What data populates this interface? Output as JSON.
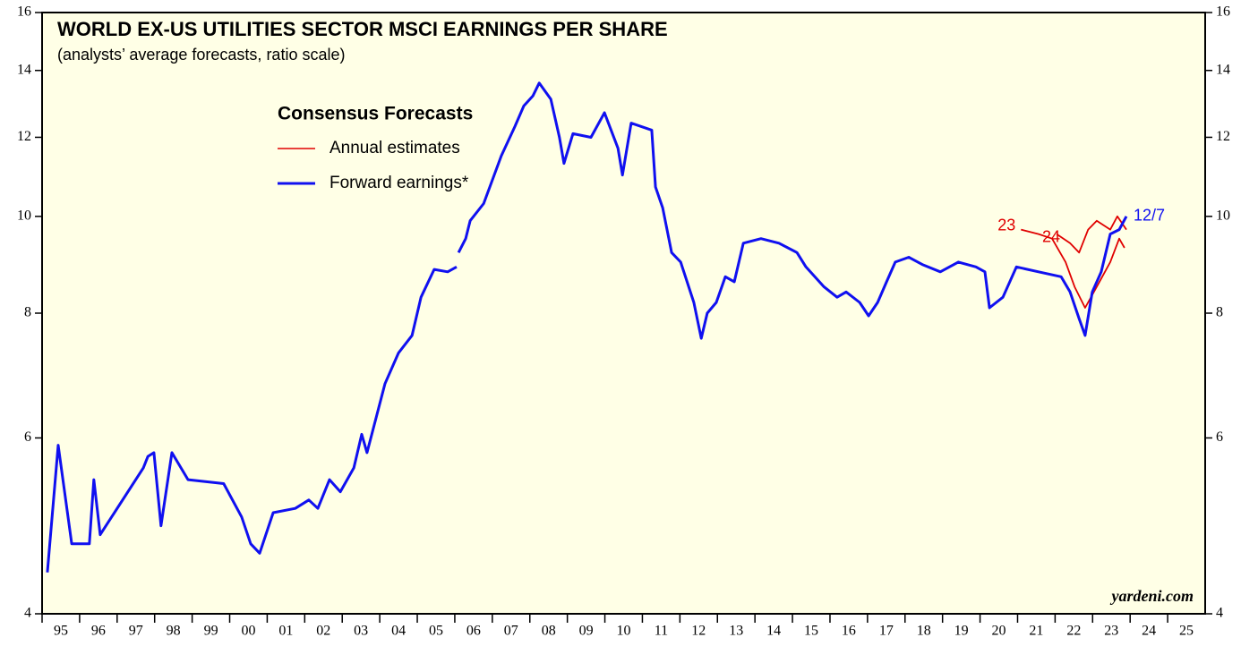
{
  "chart_data": {
    "type": "line",
    "title": "WORLD EX-US UTILITIES SECTOR MSCI EARNINGS PER SHARE",
    "subtitle": "(analysts’ average forecasts, ratio scale)",
    "legend_title": "Consensus Forecasts",
    "log_scale": true,
    "xlim": [
      1995,
      2026
    ],
    "ylim": [
      4,
      16
    ],
    "yticks": [
      4,
      6,
      8,
      10,
      12,
      14,
      16
    ],
    "xticks": [
      {
        "value": 1995,
        "label": "95"
      },
      {
        "value": 1996,
        "label": "96"
      },
      {
        "value": 1997,
        "label": "97"
      },
      {
        "value": 1998,
        "label": "98"
      },
      {
        "value": 1999,
        "label": "99"
      },
      {
        "value": 2000,
        "label": "00"
      },
      {
        "value": 2001,
        "label": "01"
      },
      {
        "value": 2002,
        "label": "02"
      },
      {
        "value": 2003,
        "label": "03"
      },
      {
        "value": 2004,
        "label": "04"
      },
      {
        "value": 2005,
        "label": "05"
      },
      {
        "value": 2006,
        "label": "06"
      },
      {
        "value": 2007,
        "label": "07"
      },
      {
        "value": 2008,
        "label": "08"
      },
      {
        "value": 2009,
        "label": "09"
      },
      {
        "value": 2010,
        "label": "10"
      },
      {
        "value": 2011,
        "label": "11"
      },
      {
        "value": 2012,
        "label": "12"
      },
      {
        "value": 2013,
        "label": "13"
      },
      {
        "value": 2014,
        "label": "14"
      },
      {
        "value": 2015,
        "label": "15"
      },
      {
        "value": 2016,
        "label": "16"
      },
      {
        "value": 2017,
        "label": "17"
      },
      {
        "value": 2018,
        "label": "18"
      },
      {
        "value": 2019,
        "label": "19"
      },
      {
        "value": 2020,
        "label": "20"
      },
      {
        "value": 2021,
        "label": "21"
      },
      {
        "value": 2022,
        "label": "22"
      },
      {
        "value": 2023,
        "label": "23"
      },
      {
        "value": 2024,
        "label": "24"
      },
      {
        "value": 2025,
        "label": "25"
      }
    ],
    "series": [
      {
        "name": "Annual estimates",
        "color": "#e00000",
        "segments": [
          {
            "label": "23",
            "x": [
              2021.09,
              2021.56,
              2021.92,
              2022.28,
              2022.52,
              2022.8,
              2023.11,
              2023.47,
              2023.71,
              2023.85
            ],
            "values": [
              9.7,
              9.6,
              9.5,
              9.0,
              8.5,
              8.1,
              8.5,
              9.0,
              9.5,
              9.3
            ]
          },
          {
            "label": "24",
            "x": [
              2022.04,
              2022.4,
              2022.64,
              2022.88,
              2023.11,
              2023.47,
              2023.66,
              2023.9
            ],
            "values": [
              9.6,
              9.4,
              9.2,
              9.7,
              9.9,
              9.7,
              10.0,
              9.7
            ]
          }
        ]
      },
      {
        "name": "Forward earnings*",
        "color": "#1010f0",
        "end_label": "12/7",
        "x": [
          1995.14,
          1995.43,
          1995.79,
          1996.26,
          1996.38,
          1996.55,
          1997.7,
          1997.82,
          1997.98,
          1998.17,
          1998.46,
          1998.89,
          1999.84,
          2000.32,
          2000.56,
          2000.8,
          2001.16,
          2001.75,
          2002.11,
          2002.35,
          2002.66,
          2002.95,
          2003.31,
          2003.52,
          2003.66,
          2004.14,
          2004.5,
          2004.86,
          2005.1,
          2005.45,
          2005.81,
          2006.05,
          2006.08,
          2006.1,
          2006.29,
          2006.41,
          2006.77,
          2007.24,
          2007.6,
          2007.84,
          2008.08,
          2008.25,
          2008.56,
          2008.79,
          2008.91,
          2009.15,
          2009.63,
          2009.99,
          2010.35,
          2010.47,
          2010.7,
          2011.25,
          2011.35,
          2011.54,
          2011.78,
          2012.02,
          2012.37,
          2012.57,
          2012.73,
          2012.97,
          2013.21,
          2013.45,
          2013.69,
          2014.16,
          2014.64,
          2015.12,
          2015.36,
          2015.84,
          2016.19,
          2016.43,
          2016.79,
          2017.03,
          2017.27,
          2017.51,
          2017.74,
          2018.1,
          2018.46,
          2018.94,
          2019.42,
          2019.89,
          2020.13,
          2020.25,
          2020.61,
          2020.97,
          2021.56,
          2022.16,
          2022.4,
          2022.64,
          2022.8,
          2022.99,
          2023.23,
          2023.47,
          2023.71,
          2023.9
        ],
        "values": [
          4.4,
          5.9,
          4.7,
          4.7,
          5.45,
          4.8,
          5.6,
          5.75,
          5.8,
          4.9,
          5.8,
          5.45,
          5.4,
          5.0,
          4.7,
          4.6,
          5.05,
          5.1,
          5.2,
          5.1,
          5.45,
          5.3,
          5.6,
          6.05,
          5.8,
          6.8,
          7.3,
          7.6,
          8.3,
          8.85,
          8.8,
          8.9,
          null,
          9.2,
          9.5,
          9.9,
          10.3,
          11.5,
          12.3,
          12.9,
          13.2,
          13.6,
          13.1,
          12.0,
          11.3,
          12.1,
          12.0,
          12.7,
          11.7,
          11.0,
          12.4,
          12.2,
          10.7,
          10.2,
          9.2,
          9.0,
          8.2,
          7.55,
          8.0,
          8.2,
          8.7,
          8.6,
          9.4,
          9.5,
          9.4,
          9.2,
          8.9,
          8.5,
          8.3,
          8.4,
          8.2,
          7.95,
          8.2,
          8.6,
          9.0,
          9.1,
          8.95,
          8.8,
          9.0,
          8.9,
          8.8,
          8.1,
          8.3,
          8.9,
          8.8,
          8.7,
          8.4,
          7.9,
          7.6,
          8.4,
          8.8,
          9.6,
          9.7,
          10.0
        ]
      }
    ],
    "source": "yardeni.com"
  }
}
